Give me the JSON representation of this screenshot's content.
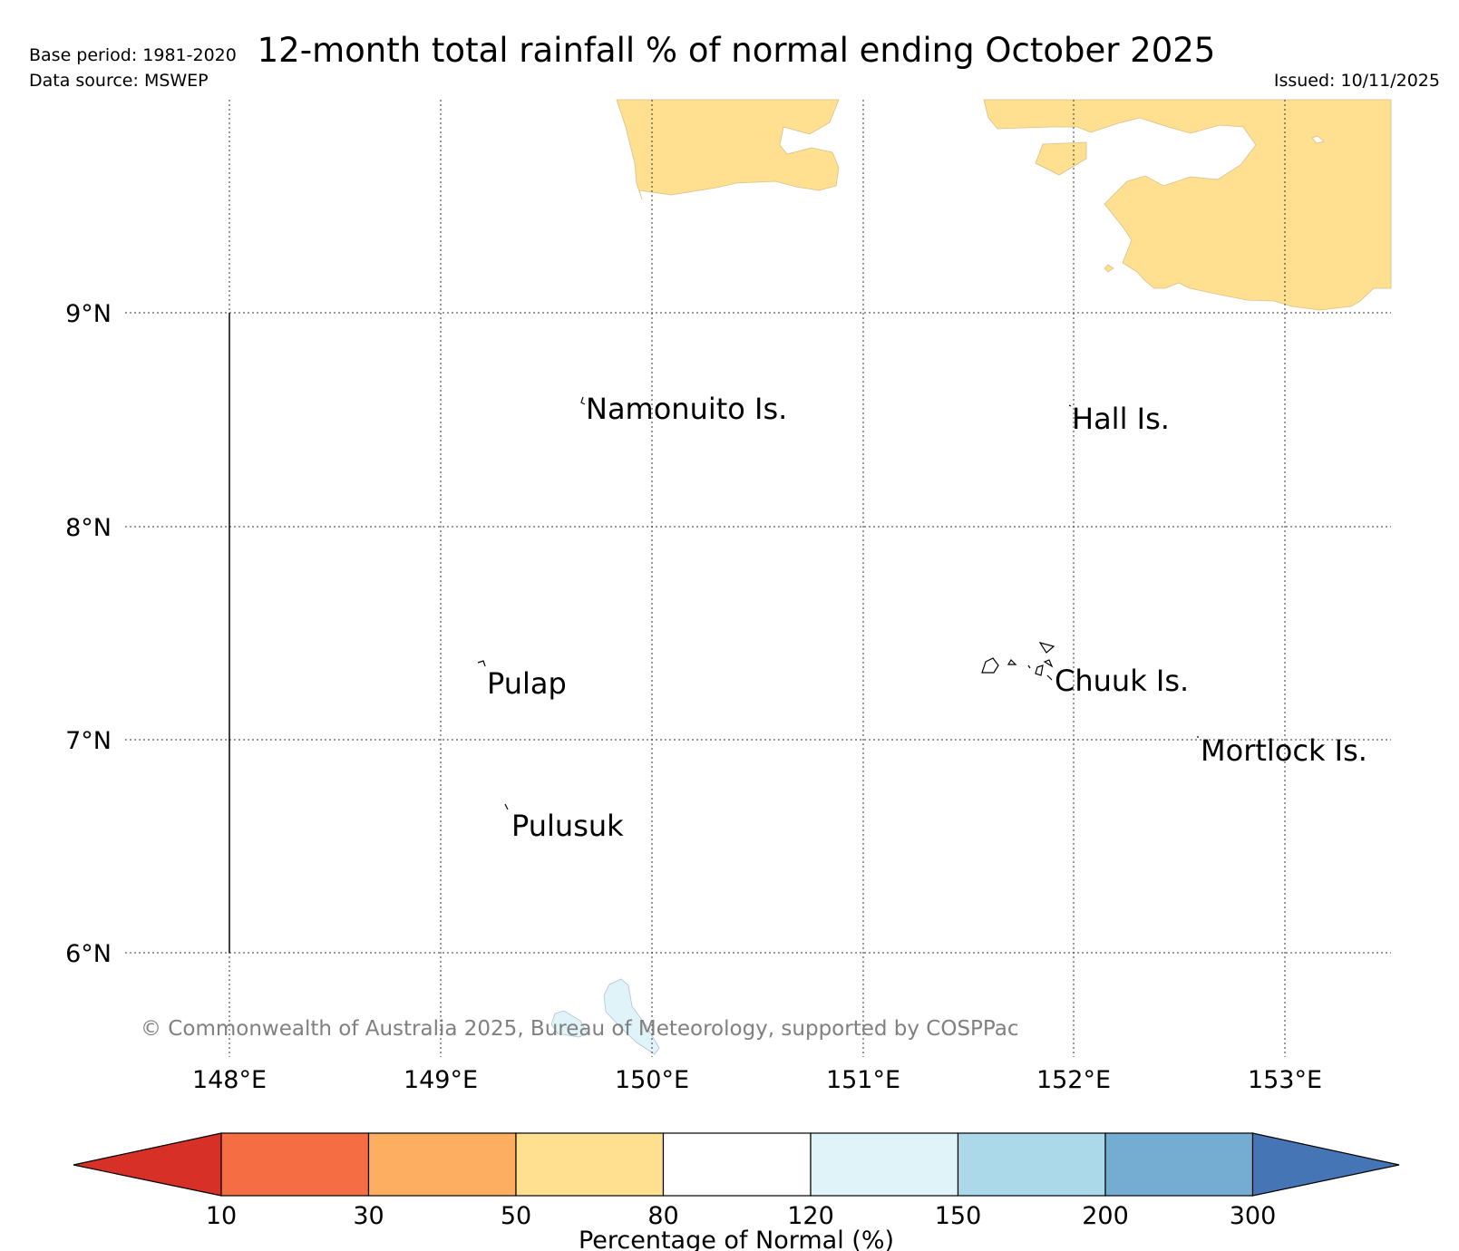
{
  "header": {
    "title": "12-month total rainfall % of normal ending October 2025",
    "base_period": "Base period: 1981-2020",
    "data_source": "Data source: MSWEP",
    "issued": "Issued: 10/11/2025"
  },
  "map": {
    "lat_ticks": [
      "9°N",
      "8°N",
      "7°N",
      "6°N"
    ],
    "lon_ticks": [
      "148°E",
      "149°E",
      "150°E",
      "151°E",
      "152°E",
      "153°E"
    ],
    "place_labels": [
      "Namonuito Is.",
      "Hall Is.",
      "Pulap",
      "Chuuk Is.",
      "Mortlock Is.",
      "Pulusuk"
    ],
    "copyright": "© Commonwealth of Australia 2025, Bureau of Meteorology, supported by COSPPac"
  },
  "legend": {
    "title": "Percentage of Normal (%)",
    "ticks": [
      "10",
      "30",
      "50",
      "80",
      "120",
      "150",
      "200",
      "300"
    ],
    "colors": {
      "below_10": "#d73027",
      "10_30": "#f46d43",
      "30_50": "#fdae61",
      "50_80": "#fee090",
      "80_120": "#ffffff",
      "120_150": "#e0f3f8",
      "150_200": "#abd9e9",
      "200_300": "#74add1",
      "above_300": "#4575b4"
    }
  }
}
